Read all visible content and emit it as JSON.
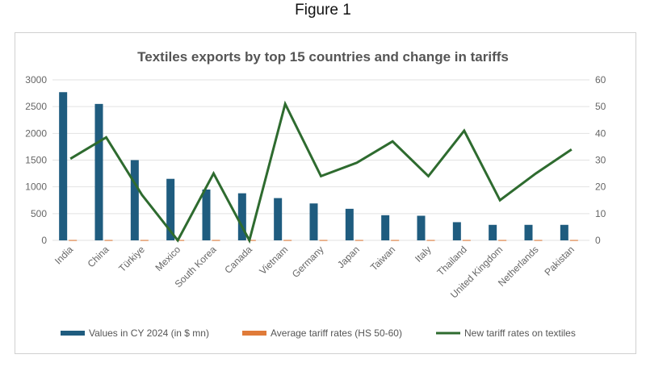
{
  "figure_label": "Figure 1",
  "chart_data": {
    "type": "bar+line",
    "title": "Textiles exports by top 15 countries and change in tariffs",
    "categories": [
      "India",
      "China",
      "Türkiye",
      "Mexico",
      "South Korea",
      "Canada",
      "Vietnam",
      "Germany",
      "Japan",
      "Taiwan",
      "Italy",
      "Thailand",
      "United Kingdom",
      "Netherlands",
      "Pakistan"
    ],
    "series": [
      {
        "name": "Values in CY 2024 (in $ mn)",
        "type": "bar",
        "axis": "left",
        "color": "#1f5c7f",
        "values": [
          2770,
          2550,
          1500,
          1150,
          950,
          880,
          790,
          690,
          590,
          470,
          460,
          340,
          290,
          290,
          290
        ]
      },
      {
        "name": "Average tariff rates (HS 50-60)",
        "type": "bar",
        "axis": "left",
        "color": "#e07b39",
        "values": [
          10,
          10,
          10,
          10,
          10,
          10,
          10,
          10,
          10,
          10,
          10,
          10,
          10,
          10,
          10
        ]
      },
      {
        "name": "New tariff rates on textiles",
        "type": "line",
        "axis": "right",
        "color": "#2e6b2f",
        "values": [
          30.5,
          38.5,
          17,
          0,
          25,
          0,
          51,
          24,
          29,
          37,
          24,
          41,
          15,
          25,
          34
        ]
      }
    ],
    "ylim_left": [
      0,
      3000
    ],
    "yticks_left": [
      "0",
      "500",
      "1000",
      "1500",
      "2000",
      "2500",
      "3000"
    ],
    "ylim_right": [
      0,
      60
    ],
    "yticks_right": [
      "0",
      "10",
      "20",
      "30",
      "40",
      "50",
      "60"
    ],
    "grid": true,
    "legend": "bottom"
  }
}
